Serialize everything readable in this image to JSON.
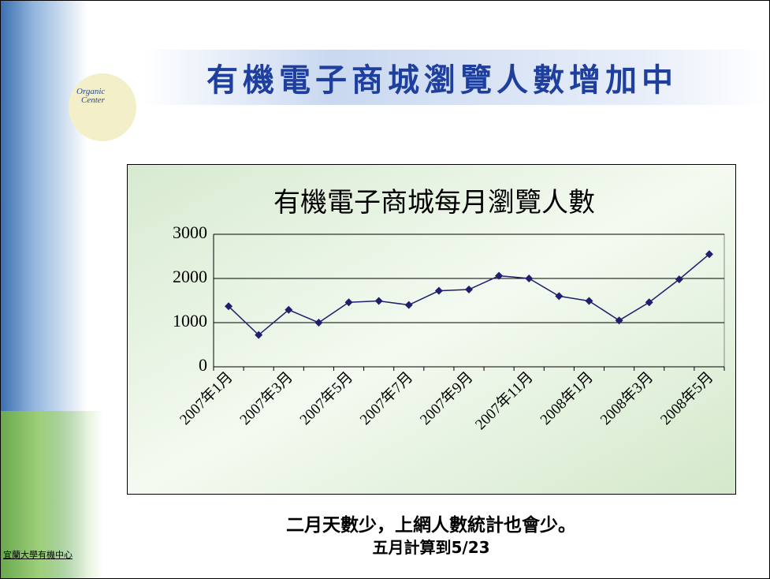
{
  "slide": {
    "title": "有機電子商城瀏覽人數增加中",
    "logo": [
      "Organic",
      "Center"
    ],
    "notes": [
      "二月天數少，上網人數統計也會少。",
      "五月計算到5/23"
    ],
    "footer": "宜蘭大學有機中心"
  },
  "chart_data": {
    "type": "line",
    "title": "有機電子商城每月瀏覽人數",
    "categories": [
      "2007年1月",
      null,
      "2007年3月",
      null,
      "2007年5月",
      null,
      "2007年7月",
      null,
      "2007年9月",
      null,
      "2007年11月",
      null,
      "2008年1月",
      null,
      "2008年3月",
      null,
      "2008年5月"
    ],
    "values": [
      1370,
      720,
      1290,
      1000,
      1460,
      1490,
      1400,
      1720,
      1750,
      2060,
      2000,
      1600,
      1490,
      1050,
      1460,
      1980,
      2550
    ],
    "color": "#1f1f6e",
    "ylim": [
      0,
      3000
    ],
    "yticks": [
      0,
      1000,
      2000,
      3000
    ],
    "grid": true
  }
}
